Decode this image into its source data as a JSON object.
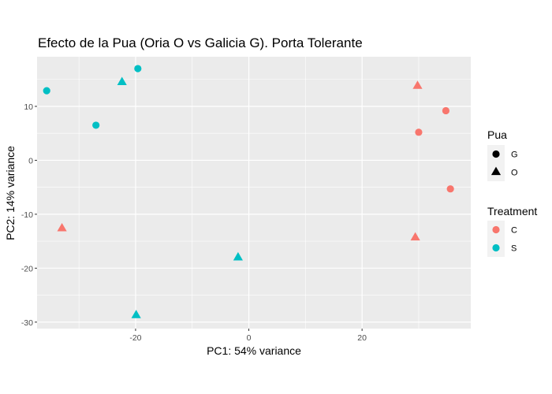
{
  "chart_data": {
    "type": "scatter",
    "title": "Efecto de la Pua (Oria O vs Galicia G). Porta Tolerante",
    "xlabel": "PC1: 54% variance",
    "ylabel": "PC2: 14% variance",
    "xlim": [
      -37.4,
      39.2
    ],
    "ylim": [
      -31.2,
      19.2
    ],
    "xticks": [
      -20,
      0,
      20
    ],
    "yticks": [
      -30,
      -20,
      -10,
      0,
      10
    ],
    "xtick_labels": [
      "-20",
      "0",
      "20"
    ],
    "ytick_labels": [
      "-30",
      "-20",
      "-10",
      "0",
      "10"
    ],
    "grid": true,
    "legend_position": "right",
    "colors": {
      "C": "#f8766d",
      "S": "#00bfc4",
      "panel": "#ebebeb",
      "grid": "#ffffff"
    },
    "points": [
      {
        "x": -35.7,
        "y": 12.9,
        "pua": "G",
        "treatment": "S"
      },
      {
        "x": -19.6,
        "y": 17.0,
        "pua": "G",
        "treatment": "S"
      },
      {
        "x": -27.0,
        "y": 6.5,
        "pua": "G",
        "treatment": "S"
      },
      {
        "x": -22.4,
        "y": 14.4,
        "pua": "O",
        "treatment": "S"
      },
      {
        "x": -1.9,
        "y": -18.1,
        "pua": "O",
        "treatment": "S"
      },
      {
        "x": -19.9,
        "y": -28.8,
        "pua": "O",
        "treatment": "S"
      },
      {
        "x": -33.0,
        "y": -12.7,
        "pua": "O",
        "treatment": "C"
      },
      {
        "x": 29.8,
        "y": 13.7,
        "pua": "O",
        "treatment": "C"
      },
      {
        "x": 29.4,
        "y": -14.4,
        "pua": "O",
        "treatment": "C"
      },
      {
        "x": 34.8,
        "y": 9.2,
        "pua": "G",
        "treatment": "C"
      },
      {
        "x": 30.0,
        "y": 5.2,
        "pua": "G",
        "treatment": "C"
      },
      {
        "x": 35.6,
        "y": -5.3,
        "pua": "G",
        "treatment": "C"
      }
    ],
    "legend": {
      "shape": {
        "title": "Pua",
        "items": [
          {
            "label": "G",
            "shape": "circle"
          },
          {
            "label": "O",
            "shape": "triangle"
          }
        ]
      },
      "color": {
        "title": "Treatment",
        "items": [
          {
            "label": "C",
            "key": "C"
          },
          {
            "label": "S",
            "key": "S"
          }
        ]
      }
    }
  }
}
